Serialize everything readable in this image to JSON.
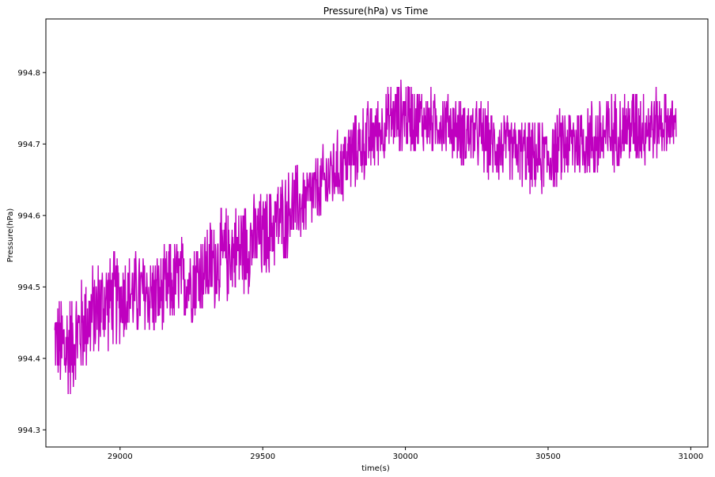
{
  "chart_data": {
    "type": "line",
    "title": "Pressure(hPa) vs Time",
    "xlabel": "time(s)",
    "ylabel": "Pressure(hPa)",
    "xlim": [
      28740,
      31060
    ],
    "ylim": [
      994.276,
      994.875
    ],
    "xticks": [
      29000,
      29500,
      30000,
      30500,
      31000
    ],
    "xtick_labels": [
      "29000",
      "29500",
      "30000",
      "30500",
      "31000"
    ],
    "yticks": [
      994.3,
      994.4,
      994.5,
      994.6,
      994.7,
      994.8
    ],
    "ytick_labels": [
      "994.3",
      "994.4",
      "994.5",
      "994.6",
      "994.7",
      "994.8"
    ],
    "grid": false,
    "legend": "none",
    "series": [
      {
        "color": "#bf00bf",
        "x": [
          28770,
          28800,
          28830,
          28860,
          28900,
          28950,
          29000,
          29050,
          29100,
          29150,
          29200,
          29250,
          29300,
          29350,
          29400,
          29450,
          29500,
          29550,
          29600,
          29650,
          29700,
          29750,
          29800,
          29850,
          29900,
          29950,
          30000,
          30050,
          30100,
          30150,
          30200,
          30250,
          30300,
          30350,
          30400,
          30450,
          30500,
          30550,
          30600,
          30650,
          30700,
          30750,
          30800,
          30850,
          30900,
          30950
        ],
        "y_low": [
          994.38,
          994.3,
          994.34,
          994.36,
          994.38,
          994.4,
          994.41,
          994.42,
          994.42,
          994.42,
          994.44,
          994.44,
          994.45,
          994.46,
          994.48,
          994.48,
          994.5,
          994.52,
          994.54,
          994.56,
          994.58,
          994.6,
          994.62,
          994.64,
          994.66,
          994.68,
          994.68,
          994.68,
          994.68,
          994.68,
          994.66,
          994.66,
          994.64,
          994.64,
          994.64,
          994.62,
          994.62,
          994.64,
          994.64,
          994.64,
          994.64,
          994.66,
          994.66,
          994.66,
          994.68,
          994.68
        ],
        "y_high": [
          994.48,
          994.52,
          994.5,
          994.52,
          994.54,
          994.56,
          994.56,
          994.56,
          994.56,
          994.56,
          994.58,
          994.58,
          994.6,
          994.62,
          994.62,
          994.64,
          994.64,
          994.66,
          994.68,
          994.68,
          994.7,
          994.72,
          994.74,
          994.76,
          994.77,
          994.79,
          994.8,
          994.79,
          994.78,
          994.78,
          994.77,
          994.77,
          994.76,
          994.75,
          994.74,
          994.74,
          994.74,
          994.76,
          994.77,
          994.77,
          994.78,
          994.78,
          994.79,
          994.79,
          994.78,
          994.77
        ],
        "x_end": 30950
      }
    ]
  }
}
